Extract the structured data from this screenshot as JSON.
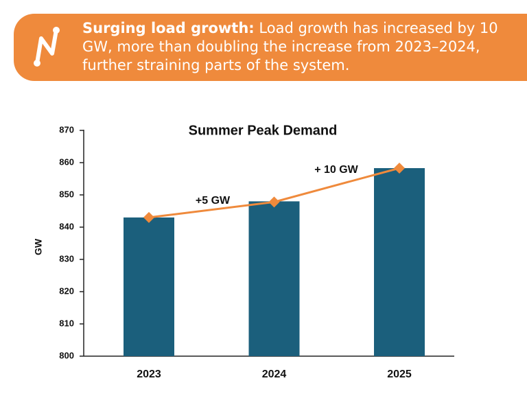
{
  "banner": {
    "heading": "Surging load growth:",
    "text": "Load growth has increased by 10 GW, more than doubling the increase from 2023–2024, further straining parts of the system."
  },
  "chart_data": {
    "type": "bar",
    "title": "Summer Peak Demand",
    "y_label": "GW",
    "categories": [
      "2023",
      "2024",
      "2025"
    ],
    "series": [
      {
        "type": "bar",
        "color": "#1b5f7c",
        "values": [
          843,
          848,
          858.3
        ]
      },
      {
        "type": "line",
        "color": "#ef8a3c",
        "values": [
          843,
          847.8,
          858.3
        ]
      }
    ],
    "annotations": [
      "+5 GW",
      "+ 10 GW"
    ],
    "ylim": [
      800,
      870
    ],
    "yticks": [
      800,
      810,
      820,
      830,
      840,
      850,
      860,
      870
    ],
    "grid": false
  }
}
